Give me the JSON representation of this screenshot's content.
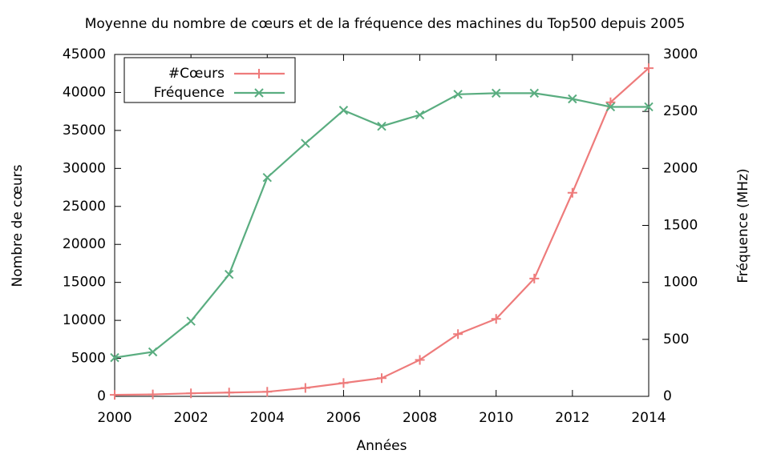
{
  "chart_data": {
    "type": "line",
    "title": "Moyenne du nombre de cœurs et de la fréquence des machines du Top500 depuis 2005",
    "xlabel": "Années",
    "ylabel": "Nombre de cœurs",
    "y2label": "Fréquence (MHz)",
    "x": [
      2000,
      2001,
      2002,
      2003,
      2004,
      2005,
      2006,
      2007,
      2008,
      2009,
      2010,
      2011,
      2012,
      2013,
      2014
    ],
    "series": [
      {
        "name": "#Cœurs",
        "color": "#ee7b7b",
        "marker": "+",
        "values": [
          200,
          250,
          400,
          500,
          600,
          1100,
          1750,
          2400,
          4800,
          8200,
          10200,
          15500,
          26800,
          38700,
          43200
        ]
      },
      {
        "name": "Fréquence",
        "color": "#5aad80",
        "marker": "x",
        "axis": "y2",
        "values": [
          340,
          390,
          660,
          1070,
          1920,
          2220,
          2510,
          2370,
          2470,
          2650,
          2660,
          2660,
          2610,
          2540,
          2540
        ]
      }
    ],
    "xlim": [
      2000,
      2014
    ],
    "xticks": [
      2000,
      2002,
      2004,
      2006,
      2008,
      2010,
      2012,
      2014
    ],
    "ylim": [
      0,
      45000
    ],
    "yticks": [
      0,
      5000,
      10000,
      15000,
      20000,
      25000,
      30000,
      35000,
      40000,
      45000
    ],
    "y2lim": [
      0,
      3000
    ],
    "y2ticks": [
      0,
      500,
      1000,
      1500,
      2000,
      2500,
      3000
    ],
    "legend": "top left"
  }
}
